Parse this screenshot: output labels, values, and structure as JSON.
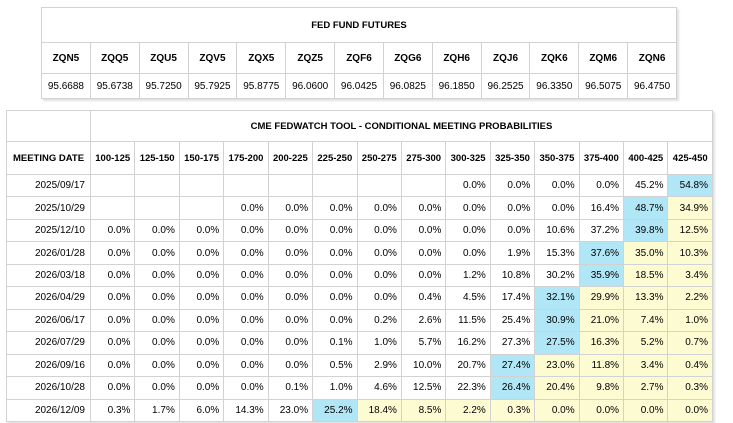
{
  "futures": {
    "title": "FED FUND FUTURES",
    "codes": [
      "ZQN5",
      "ZQQ5",
      "ZQU5",
      "ZQV5",
      "ZQX5",
      "ZQZ5",
      "ZQF6",
      "ZQG6",
      "ZQH6",
      "ZQJ6",
      "ZQK6",
      "ZQM6",
      "ZQN6"
    ],
    "prices": [
      "95.6688",
      "95.6738",
      "95.7250",
      "95.7925",
      "95.8775",
      "96.0600",
      "96.0425",
      "96.0825",
      "96.1850",
      "96.2525",
      "96.3350",
      "96.5075",
      "96.4750"
    ]
  },
  "fedwatch": {
    "title": "CME FEDWATCH TOOL - CONDITIONAL MEETING PROBABILITIES",
    "meeting_header": "MEETING DATE",
    "ranges": [
      "100-125",
      "125-150",
      "150-175",
      "175-200",
      "200-225",
      "225-250",
      "250-275",
      "275-300",
      "300-325",
      "325-350",
      "350-375",
      "375-400",
      "400-425",
      "425-450"
    ],
    "colors": {
      "highlight_max": "#b0e6f5",
      "highlight_after": "#fcfbd2",
      "border": "#d2d2d2"
    },
    "rows": [
      {
        "date": "2025/09/17",
        "values": [
          "",
          "",
          "",
          "",
          "",
          "",
          "",
          "",
          "0.0%",
          "0.0%",
          "0.0%",
          "0.0%",
          "45.2%",
          "54.8%"
        ],
        "max": 13,
        "shade_from": 14
      },
      {
        "date": "2025/10/29",
        "values": [
          "",
          "",
          "",
          "0.0%",
          "0.0%",
          "0.0%",
          "0.0%",
          "0.0%",
          "0.0%",
          "0.0%",
          "0.0%",
          "16.4%",
          "48.7%",
          "34.9%"
        ],
        "max": 12,
        "shade_from": 13
      },
      {
        "date": "2025/12/10",
        "values": [
          "0.0%",
          "0.0%",
          "0.0%",
          "0.0%",
          "0.0%",
          "0.0%",
          "0.0%",
          "0.0%",
          "0.0%",
          "0.0%",
          "10.6%",
          "37.2%",
          "39.8%",
          "12.5%"
        ],
        "max": 12,
        "shade_from": 13
      },
      {
        "date": "2026/01/28",
        "values": [
          "0.0%",
          "0.0%",
          "0.0%",
          "0.0%",
          "0.0%",
          "0.0%",
          "0.0%",
          "0.0%",
          "0.0%",
          "1.9%",
          "15.3%",
          "37.6%",
          "35.0%",
          "10.3%"
        ],
        "max": 11,
        "shade_from": 12
      },
      {
        "date": "2026/03/18",
        "values": [
          "0.0%",
          "0.0%",
          "0.0%",
          "0.0%",
          "0.0%",
          "0.0%",
          "0.0%",
          "0.0%",
          "1.2%",
          "10.8%",
          "30.2%",
          "35.9%",
          "18.5%",
          "3.4%"
        ],
        "max": 11,
        "shade_from": 12
      },
      {
        "date": "2026/04/29",
        "values": [
          "0.0%",
          "0.0%",
          "0.0%",
          "0.0%",
          "0.0%",
          "0.0%",
          "0.0%",
          "0.4%",
          "4.5%",
          "17.4%",
          "32.1%",
          "29.9%",
          "13.3%",
          "2.2%"
        ],
        "max": 10,
        "shade_from": 11
      },
      {
        "date": "2026/06/17",
        "values": [
          "0.0%",
          "0.0%",
          "0.0%",
          "0.0%",
          "0.0%",
          "0.0%",
          "0.2%",
          "2.6%",
          "11.5%",
          "25.4%",
          "30.9%",
          "21.0%",
          "7.4%",
          "1.0%"
        ],
        "max": 10,
        "shade_from": 11
      },
      {
        "date": "2026/07/29",
        "values": [
          "0.0%",
          "0.0%",
          "0.0%",
          "0.0%",
          "0.0%",
          "0.1%",
          "1.0%",
          "5.7%",
          "16.2%",
          "27.3%",
          "27.5%",
          "16.3%",
          "5.2%",
          "0.7%"
        ],
        "max": 10,
        "shade_from": 11
      },
      {
        "date": "2026/09/16",
        "values": [
          "0.0%",
          "0.0%",
          "0.0%",
          "0.0%",
          "0.0%",
          "0.5%",
          "2.9%",
          "10.0%",
          "20.7%",
          "27.4%",
          "23.0%",
          "11.8%",
          "3.4%",
          "0.4%"
        ],
        "max": 9,
        "shade_from": 10
      },
      {
        "date": "2026/10/28",
        "values": [
          "0.0%",
          "0.0%",
          "0.0%",
          "0.0%",
          "0.1%",
          "1.0%",
          "4.6%",
          "12.5%",
          "22.3%",
          "26.4%",
          "20.4%",
          "9.8%",
          "2.7%",
          "0.3%"
        ],
        "max": 9,
        "shade_from": 10
      },
      {
        "date": "2026/12/09",
        "values": [
          "0.3%",
          "1.7%",
          "6.0%",
          "14.3%",
          "23.0%",
          "25.2%",
          "18.4%",
          "8.5%",
          "2.2%",
          "0.3%",
          "0.0%",
          "0.0%",
          "0.0%",
          "0.0%"
        ],
        "max": 5,
        "shade_from": 6
      }
    ]
  }
}
